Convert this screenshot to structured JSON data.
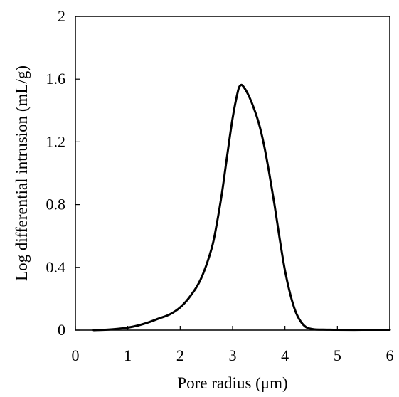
{
  "chart_data": {
    "type": "line",
    "title": "",
    "xlabel": "Pore radius (μm)",
    "ylabel": "Log differential intrusion (mL/g)",
    "xlim": [
      0,
      6
    ],
    "ylim": [
      0,
      2
    ],
    "xticks": [
      "0",
      "1",
      "2",
      "3",
      "4",
      "5",
      "6"
    ],
    "yticks": [
      "0",
      "0.4",
      "0.8",
      "1.2",
      "1.6",
      "2"
    ],
    "grid": false,
    "legend": "none",
    "line_color": "#000000",
    "series": [
      {
        "x": [
          0.35,
          0.6,
          0.8,
          1.0,
          1.2,
          1.4,
          1.6,
          1.8,
          2.0,
          2.2,
          2.4,
          2.6,
          2.7,
          2.8,
          2.9,
          3.0,
          3.1,
          3.15,
          3.2,
          3.3,
          3.4,
          3.5,
          3.6,
          3.7,
          3.8,
          3.9,
          4.0,
          4.1,
          4.2,
          4.3,
          4.4,
          4.5,
          4.6,
          4.8,
          5.0,
          5.5,
          6.0
        ],
        "y": [
          0.0,
          0.003,
          0.008,
          0.016,
          0.03,
          0.05,
          0.075,
          0.1,
          0.145,
          0.22,
          0.33,
          0.52,
          0.68,
          0.88,
          1.12,
          1.35,
          1.52,
          1.56,
          1.555,
          1.5,
          1.42,
          1.32,
          1.18,
          1.0,
          0.8,
          0.58,
          0.38,
          0.23,
          0.12,
          0.055,
          0.02,
          0.008,
          0.004,
          0.003,
          0.002,
          0.002,
          0.002
        ]
      }
    ]
  }
}
